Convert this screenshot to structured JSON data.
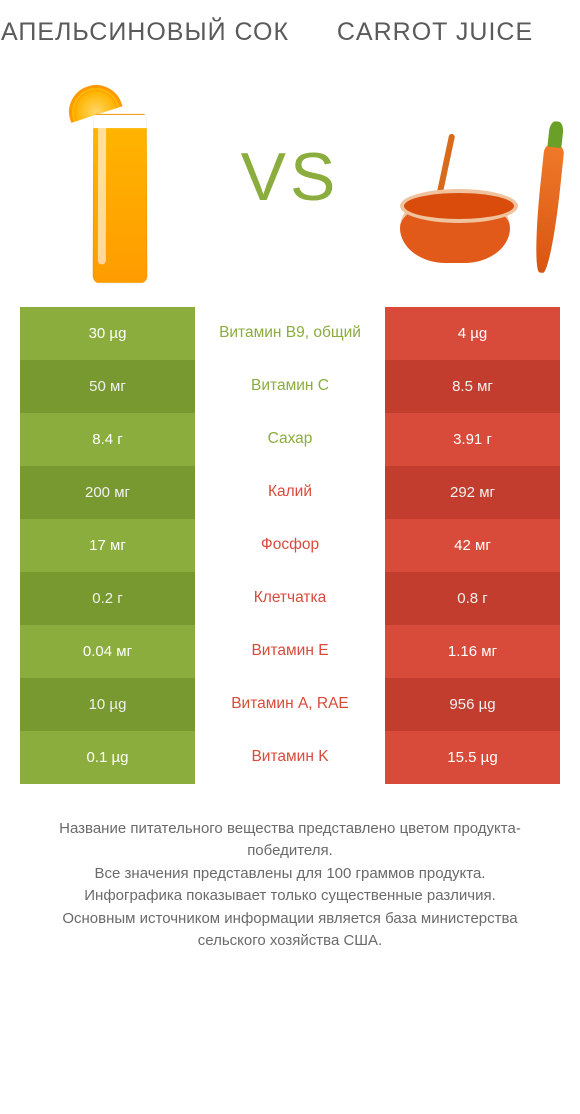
{
  "colors": {
    "left": "#8aad3d",
    "right": "#d84b3b",
    "text": "#6a6a6a",
    "vs": "#8aad3d",
    "white": "#ffffff"
  },
  "header": {
    "left_title": "АПЕЛЬСИНОВЫЙ СОК",
    "right_title": "CARROT JUICE",
    "vs": "VS"
  },
  "table": {
    "rows": [
      {
        "left": "30 µg",
        "label": "Витамин B9, общий",
        "right": "4 µg",
        "winner": "left"
      },
      {
        "left": "50 мг",
        "label": "Витамин C",
        "right": "8.5 мг",
        "winner": "left"
      },
      {
        "left": "8.4 г",
        "label": "Сахар",
        "right": "3.91 г",
        "winner": "left"
      },
      {
        "left": "200 мг",
        "label": "Калий",
        "right": "292 мг",
        "winner": "right"
      },
      {
        "left": "17 мг",
        "label": "Фосфор",
        "right": "42 мг",
        "winner": "right"
      },
      {
        "left": "0.2 г",
        "label": "Клетчатка",
        "right": "0.8 г",
        "winner": "right"
      },
      {
        "left": "0.04 мг",
        "label": "Витамин E",
        "right": "1.16 мг",
        "winner": "right"
      },
      {
        "left": "10 µg",
        "label": "Витамин A, RAE",
        "right": "956 µg",
        "winner": "right"
      },
      {
        "left": "0.1 µg",
        "label": "Витамин K",
        "right": "15.5 µg",
        "winner": "right"
      }
    ]
  },
  "footnote": {
    "line1": "Название питательного вещества представлено цветом продукта-победителя.",
    "line2": "Все значения представлены для 100 граммов продукта.",
    "line3": "Инфографика показывает только существенные различия.",
    "line4": "Основным источником информации является база министерства сельского хозяйства США."
  }
}
